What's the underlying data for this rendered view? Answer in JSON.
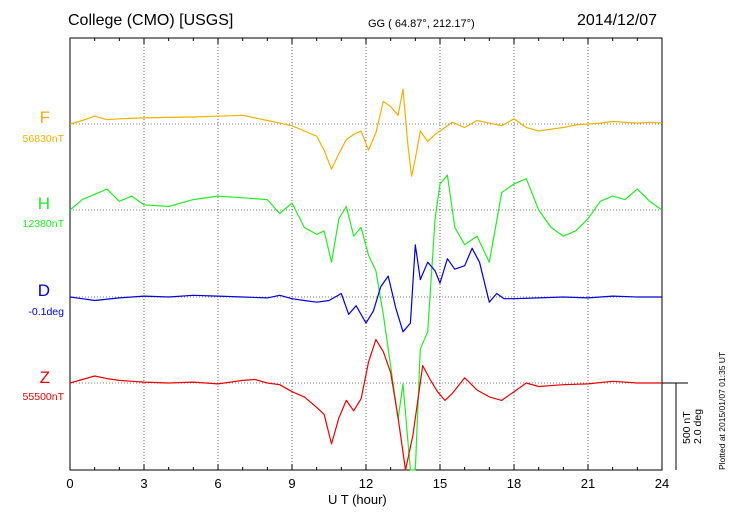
{
  "header": {
    "station": "College (CMO)  [USGS]",
    "coords": "GG ( 64.87°, 212.17°)",
    "date": "2014/12/07"
  },
  "footer": {
    "plotted": "Plotted at 2015/01/07 01:35 UT"
  },
  "scale": {
    "nt_label": "500 nT",
    "deg_label": "2.0 deg"
  },
  "chart_data": {
    "type": "line",
    "title": "College (CMO)  [USGS]",
    "xlabel": "U T (hour)",
    "ylabel": "",
    "xlim": [
      0,
      24
    ],
    "x_ticks": [
      "0",
      "3",
      "6",
      "9",
      "12",
      "15",
      "18",
      "21",
      "24"
    ],
    "grid": true,
    "scale_bar": {
      "nT": 500,
      "deg": 2.0
    },
    "series": [
      {
        "name": "F",
        "baseline_label": "56830nT",
        "color": "#f5b000",
        "x": [
          0,
          0.5,
          1,
          1.5,
          2,
          3,
          4,
          5,
          6,
          7,
          8,
          8.5,
          9,
          9.5,
          10,
          10.3,
          10.6,
          10.9,
          11.2,
          11.5,
          11.8,
          12.1,
          12.4,
          12.7,
          13,
          13.3,
          13.5,
          13.7,
          13.85,
          14,
          14.2,
          14.5,
          14.8,
          15,
          15.5,
          16,
          16.5,
          17,
          17.5,
          18,
          18.5,
          19,
          19.5,
          20,
          20.5,
          21,
          21.5,
          22,
          22.5,
          23,
          23.5,
          24
        ],
        "values": [
          0,
          20,
          45,
          25,
          30,
          35,
          38,
          40,
          45,
          50,
          20,
          5,
          -10,
          -40,
          -70,
          -150,
          -260,
          -170,
          -90,
          -60,
          -40,
          -150,
          -50,
          130,
          100,
          50,
          200,
          -120,
          -300,
          -200,
          -40,
          -100,
          -60,
          -40,
          10,
          -20,
          20,
          5,
          -10,
          30,
          -20,
          -40,
          -30,
          -20,
          -5,
          0,
          5,
          15,
          10,
          5,
          10,
          5
        ]
      },
      {
        "name": "H",
        "baseline_label": "12380nT",
        "color": "#22ee22",
        "x": [
          0,
          0.5,
          1,
          1.5,
          2,
          2.5,
          3,
          4,
          5,
          6,
          7,
          8,
          8.5,
          9,
          9.5,
          10,
          10.3,
          10.6,
          10.9,
          11.2,
          11.5,
          11.8,
          12.1,
          12.4,
          12.7,
          13,
          13.3,
          13.5,
          13.8,
          14,
          14.2,
          14.5,
          14.8,
          15,
          15.3,
          15.6,
          16,
          16.5,
          17,
          17.5,
          18,
          18.5,
          19,
          19.5,
          20,
          20.5,
          21,
          21.5,
          22,
          22.5,
          23,
          23.5,
          24
        ],
        "values": [
          0,
          60,
          90,
          120,
          50,
          80,
          30,
          20,
          60,
          80,
          70,
          60,
          -20,
          40,
          -100,
          -140,
          -120,
          -300,
          -50,
          20,
          -150,
          -100,
          -260,
          -350,
          -600,
          -900,
          -1200,
          -1000,
          -1500,
          -1800,
          -800,
          -700,
          -50,
          150,
          200,
          -100,
          -200,
          -150,
          -300,
          100,
          150,
          180,
          0,
          -100,
          -150,
          -120,
          -50,
          50,
          80,
          60,
          120,
          50,
          0
        ]
      },
      {
        "name": "D",
        "baseline_label": "-0.1deg",
        "color": "#0000dd",
        "x": [
          0,
          0.5,
          1,
          2,
          3,
          4,
          5,
          6,
          7,
          8,
          8.5,
          9,
          9.5,
          10,
          10.5,
          11,
          11.3,
          11.6,
          12,
          12.3,
          12.6,
          12.9,
          13.2,
          13.5,
          13.8,
          14,
          14.2,
          14.5,
          14.8,
          15,
          15.3,
          15.6,
          16,
          16.3,
          16.6,
          17,
          17.3,
          17.6,
          18,
          19,
          20,
          21,
          22,
          23,
          24
        ],
        "values": [
          0,
          -10,
          -20,
          -5,
          5,
          0,
          10,
          5,
          0,
          -5,
          10,
          -10,
          -20,
          -30,
          -20,
          20,
          -100,
          -50,
          -150,
          -80,
          60,
          120,
          -60,
          -200,
          -150,
          300,
          100,
          200,
          150,
          80,
          220,
          160,
          180,
          280,
          200,
          -30,
          20,
          -10,
          -10,
          -5,
          0,
          -5,
          5,
          0,
          0
        ]
      },
      {
        "name": "Z",
        "baseline_label": "55500nT",
        "color": "#ee0000",
        "x": [
          0,
          0.5,
          1,
          1.5,
          2,
          3,
          4,
          5,
          6,
          7,
          7.5,
          8,
          8.5,
          9,
          9.5,
          10,
          10.3,
          10.6,
          10.9,
          11.2,
          11.5,
          11.8,
          12.1,
          12.4,
          12.7,
          13,
          13.3,
          13.6,
          13.9,
          14.1,
          14.3,
          14.6,
          14.9,
          15.2,
          15.5,
          16,
          16.5,
          17,
          17.5,
          18,
          18.5,
          19,
          20,
          21,
          22,
          23,
          24
        ],
        "values": [
          0,
          20,
          40,
          25,
          15,
          5,
          0,
          5,
          -5,
          15,
          20,
          0,
          -10,
          -50,
          -80,
          -140,
          -180,
          -350,
          -200,
          -100,
          -160,
          -90,
          120,
          250,
          180,
          60,
          -200,
          -500,
          -300,
          -100,
          100,
          20,
          -50,
          -100,
          -60,
          30,
          -40,
          -80,
          -100,
          -50,
          0,
          -20,
          -10,
          -5,
          10,
          0,
          0
        ]
      }
    ]
  }
}
